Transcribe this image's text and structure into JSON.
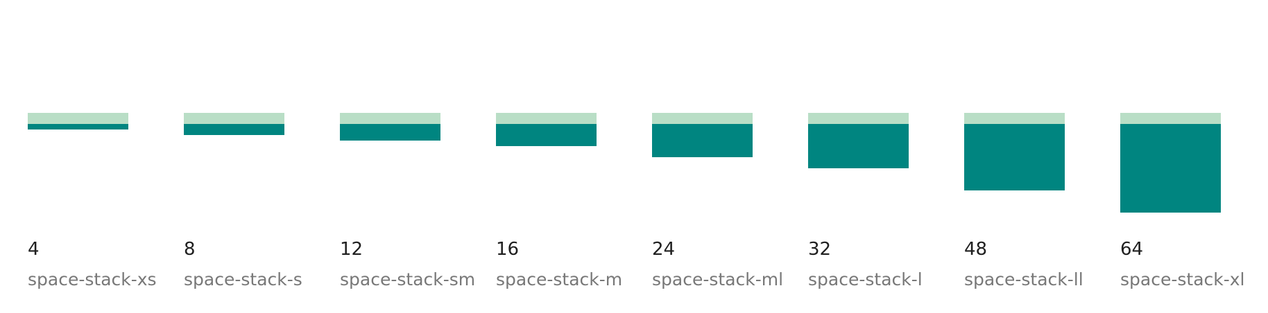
{
  "colors": {
    "top_band": "#b9dec6",
    "space_fill": "#008580",
    "value_text": "#1f1f1f",
    "name_text": "#787878"
  },
  "tokens": [
    {
      "value": "4",
      "name": "space-stack-xs"
    },
    {
      "value": "8",
      "name": "space-stack-s"
    },
    {
      "value": "12",
      "name": "space-stack-sm"
    },
    {
      "value": "16",
      "name": "space-stack-m"
    },
    {
      "value": "24",
      "name": "space-stack-ml"
    },
    {
      "value": "32",
      "name": "space-stack-l"
    },
    {
      "value": "48",
      "name": "space-stack-ll"
    },
    {
      "value": "64",
      "name": "space-stack-xl"
    }
  ]
}
